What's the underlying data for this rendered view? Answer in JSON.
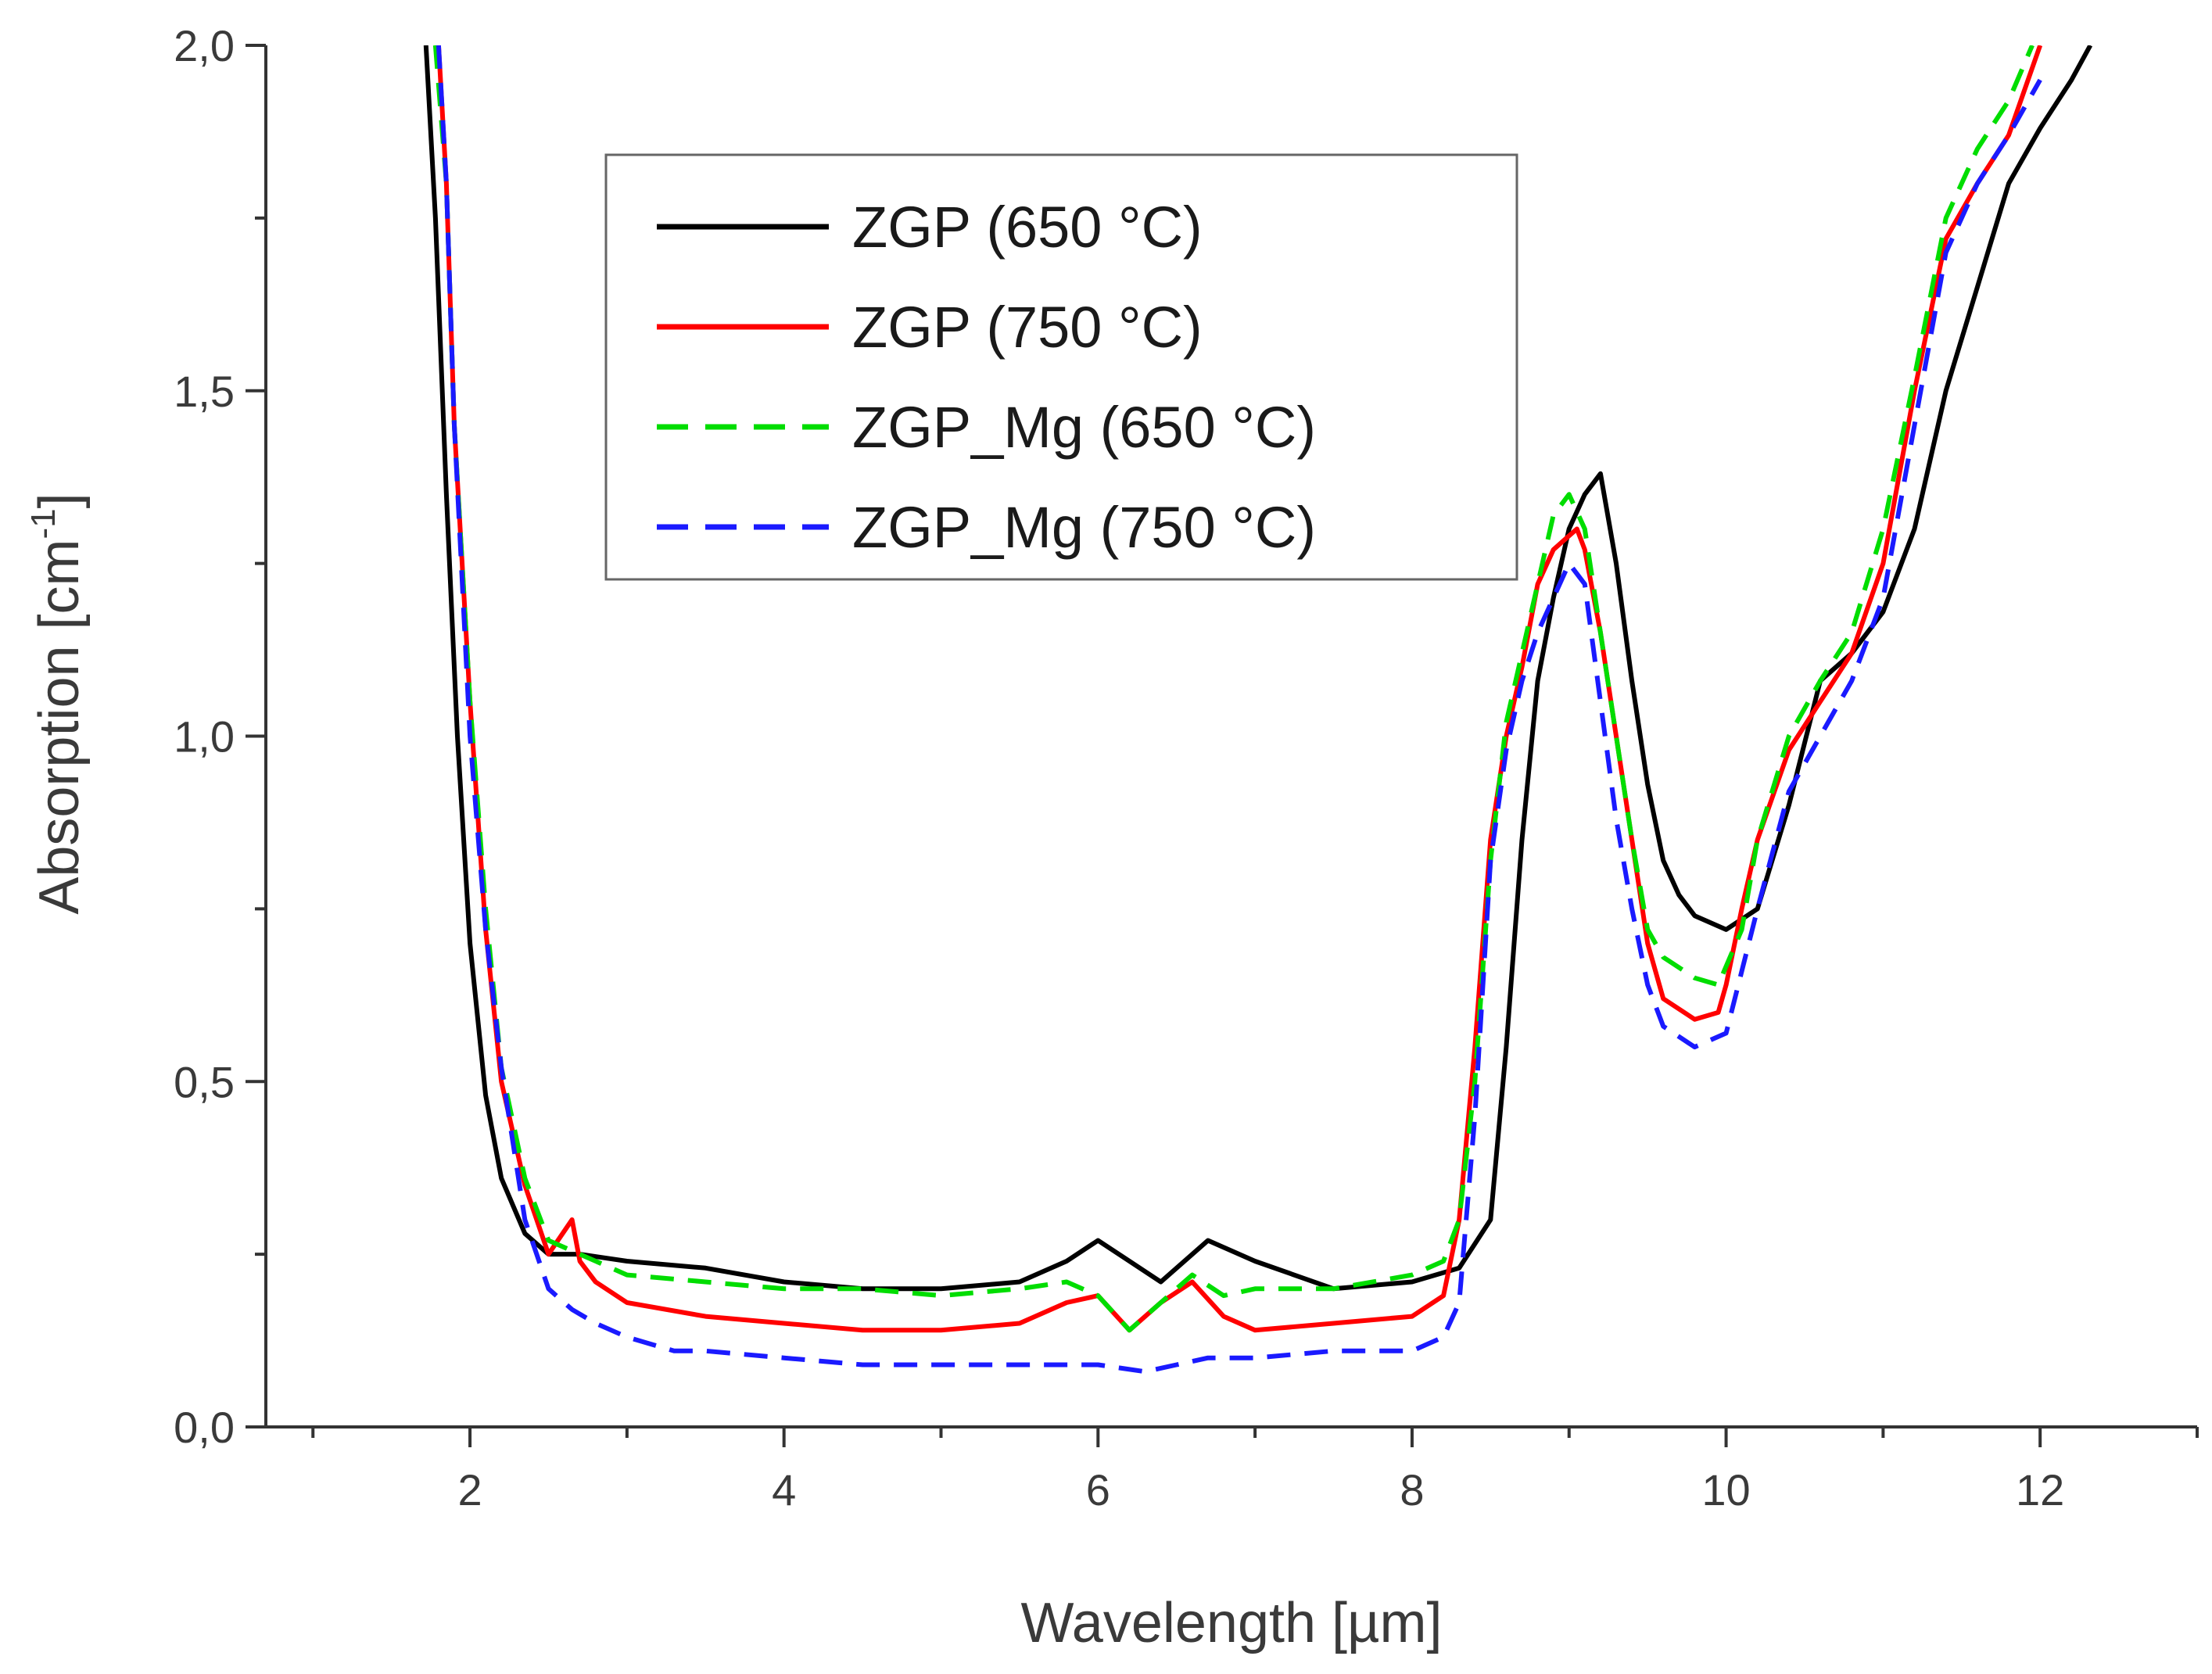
{
  "chart_data": {
    "type": "line",
    "title": "",
    "xlabel": "Wavelength [µm]",
    "ylabel": "Absorption [cm",
    "ylabel_sup": "-1",
    "ylabel_close": "]",
    "xlim": [
      0.7,
      13.0
    ],
    "ylim": [
      0.0,
      2.0
    ],
    "xticks": [
      2,
      4,
      6,
      8,
      10,
      12
    ],
    "xtick_labels": [
      "2",
      "4",
      "6",
      "8",
      "10",
      "12"
    ],
    "x_minor_ticks": [
      1,
      3,
      5,
      7,
      9,
      11,
      13
    ],
    "yticks": [
      0.0,
      0.5,
      1.0,
      1.5,
      2.0
    ],
    "ytick_labels": [
      "0,0",
      "0,5",
      "1,0",
      "1,5",
      "2,0"
    ],
    "grid": false,
    "legend_position": "top-center",
    "series": [
      {
        "name": "ZGP (650 °C)",
        "color": "#000000",
        "dash": "solid",
        "x": [
          1.72,
          1.78,
          1.85,
          1.92,
          2.0,
          2.1,
          2.2,
          2.35,
          2.5,
          2.7,
          3.0,
          3.5,
          4.0,
          4.5,
          5.0,
          5.5,
          5.8,
          6.0,
          6.2,
          6.4,
          6.7,
          7.0,
          7.5,
          8.0,
          8.3,
          8.5,
          8.6,
          8.7,
          8.8,
          8.9,
          9.0,
          9.1,
          9.2,
          9.3,
          9.4,
          9.5,
          9.6,
          9.7,
          9.8,
          10.0,
          10.2,
          10.4,
          10.6,
          10.8,
          11.0,
          11.2,
          11.4,
          11.6,
          11.8,
          12.0,
          12.2,
          12.32
        ],
        "y": [
          2.0,
          1.75,
          1.35,
          1.0,
          0.7,
          0.48,
          0.36,
          0.28,
          0.25,
          0.25,
          0.24,
          0.23,
          0.21,
          0.2,
          0.2,
          0.21,
          0.24,
          0.27,
          0.24,
          0.21,
          0.27,
          0.24,
          0.2,
          0.21,
          0.23,
          0.3,
          0.55,
          0.85,
          1.08,
          1.2,
          1.3,
          1.35,
          1.38,
          1.25,
          1.08,
          0.93,
          0.82,
          0.77,
          0.74,
          0.72,
          0.75,
          0.9,
          1.08,
          1.12,
          1.18,
          1.3,
          1.5,
          1.65,
          1.8,
          1.88,
          1.95,
          2.0
        ]
      },
      {
        "name": "ZGP (750 °C)",
        "color": "#ff0000",
        "dash": "solid",
        "x": [
          1.8,
          1.85,
          1.9,
          2.0,
          2.1,
          2.2,
          2.35,
          2.5,
          2.65,
          2.7,
          2.8,
          3.0,
          3.5,
          4.0,
          4.5,
          5.0,
          5.5,
          5.8,
          6.0,
          6.2,
          6.4,
          6.6,
          6.8,
          7.0,
          7.5,
          8.0,
          8.2,
          8.3,
          8.4,
          8.5,
          8.6,
          8.7,
          8.8,
          8.9,
          9.0,
          9.05,
          9.1,
          9.2,
          9.3,
          9.4,
          9.5,
          9.6,
          9.8,
          9.95,
          10.0,
          10.1,
          10.2,
          10.4,
          10.6,
          10.8,
          11.0,
          11.2,
          11.4,
          11.6,
          11.8,
          12.0
        ],
        "y": [
          2.0,
          1.8,
          1.45,
          1.05,
          0.72,
          0.5,
          0.35,
          0.25,
          0.3,
          0.24,
          0.21,
          0.18,
          0.16,
          0.15,
          0.14,
          0.14,
          0.15,
          0.18,
          0.19,
          0.14,
          0.18,
          0.21,
          0.16,
          0.14,
          0.15,
          0.16,
          0.19,
          0.3,
          0.55,
          0.85,
          1.0,
          1.1,
          1.22,
          1.27,
          1.29,
          1.3,
          1.27,
          1.15,
          1.0,
          0.85,
          0.7,
          0.62,
          0.59,
          0.6,
          0.64,
          0.75,
          0.85,
          0.98,
          1.05,
          1.12,
          1.25,
          1.5,
          1.72,
          1.8,
          1.87,
          2.0
        ]
      },
      {
        "name": "ZGP_Mg (650 °C)",
        "color": "#00dd00",
        "dash": "dashed",
        "x": [
          1.78,
          1.85,
          1.9,
          2.0,
          2.1,
          2.2,
          2.35,
          2.5,
          2.7,
          3.0,
          3.5,
          4.0,
          4.5,
          5.0,
          5.5,
          5.8,
          6.0,
          6.2,
          6.4,
          6.6,
          6.8,
          7.0,
          7.5,
          8.0,
          8.2,
          8.3,
          8.4,
          8.5,
          8.6,
          8.7,
          8.8,
          8.9,
          9.0,
          9.1,
          9.2,
          9.3,
          9.4,
          9.5,
          9.6,
          9.8,
          9.95,
          10.1,
          10.2,
          10.4,
          10.6,
          10.8,
          11.0,
          11.2,
          11.4,
          11.6,
          11.8,
          11.95
        ],
        "y": [
          2.0,
          1.8,
          1.45,
          1.05,
          0.75,
          0.52,
          0.36,
          0.27,
          0.25,
          0.22,
          0.21,
          0.2,
          0.2,
          0.19,
          0.2,
          0.21,
          0.19,
          0.14,
          0.18,
          0.22,
          0.19,
          0.2,
          0.2,
          0.22,
          0.24,
          0.3,
          0.5,
          0.82,
          1.02,
          1.12,
          1.22,
          1.32,
          1.35,
          1.3,
          1.15,
          1.0,
          0.85,
          0.72,
          0.68,
          0.65,
          0.64,
          0.72,
          0.85,
          1.0,
          1.08,
          1.15,
          1.3,
          1.52,
          1.75,
          1.85,
          1.92,
          2.0
        ]
      },
      {
        "name": "ZGP_Mg (750 °C)",
        "color": "#1a1aff",
        "dash": "dashed",
        "x": [
          1.8,
          1.85,
          1.9,
          2.0,
          2.1,
          2.2,
          2.35,
          2.5,
          2.65,
          2.8,
          3.0,
          3.3,
          3.5,
          4.0,
          4.5,
          5.0,
          5.5,
          6.0,
          6.3,
          6.5,
          6.7,
          7.0,
          7.5,
          8.0,
          8.2,
          8.3,
          8.4,
          8.5,
          8.6,
          8.7,
          8.8,
          8.9,
          9.0,
          9.1,
          9.2,
          9.3,
          9.4,
          9.5,
          9.6,
          9.8,
          10.0,
          10.2,
          10.4,
          10.6,
          10.8,
          11.0,
          11.2,
          11.4,
          11.6,
          11.8,
          12.0
        ],
        "y": [
          2.0,
          1.8,
          1.45,
          1.0,
          0.72,
          0.52,
          0.3,
          0.2,
          0.17,
          0.15,
          0.13,
          0.11,
          0.11,
          0.1,
          0.09,
          0.09,
          0.09,
          0.09,
          0.08,
          0.09,
          0.1,
          0.1,
          0.11,
          0.11,
          0.13,
          0.18,
          0.45,
          0.82,
          0.98,
          1.08,
          1.15,
          1.2,
          1.25,
          1.22,
          1.05,
          0.88,
          0.75,
          0.64,
          0.58,
          0.55,
          0.57,
          0.75,
          0.92,
          1.0,
          1.08,
          1.2,
          1.45,
          1.7,
          1.8,
          1.87,
          1.95
        ]
      }
    ]
  }
}
